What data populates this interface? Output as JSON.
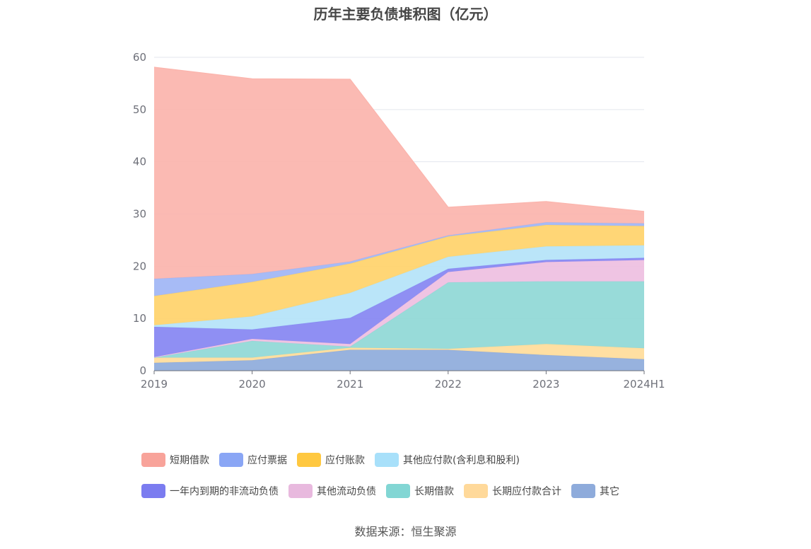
{
  "chart_data": {
    "type": "area",
    "stacked": true,
    "title": "历年主要负债堆积图（亿元）",
    "categories": [
      "2019",
      "2020",
      "2021",
      "2022",
      "2023",
      "2024H1"
    ],
    "ylim": [
      0,
      60
    ],
    "yticks": [
      0,
      10,
      20,
      30,
      40,
      50,
      60
    ],
    "grid": true,
    "legend_position": "bottom",
    "series": [
      {
        "name": "其它",
        "color": "#8eabdb",
        "values": [
          1.5,
          2.0,
          4.0,
          4.0,
          3.0,
          2.2
        ]
      },
      {
        "name": "长期应付款合计",
        "color": "#ffdc9a",
        "values": [
          1.0,
          0.5,
          0.4,
          0.2,
          2.1,
          2.1
        ]
      },
      {
        "name": "长期借款",
        "color": "#8fd8d6",
        "values": [
          0.0,
          3.2,
          0.2,
          12.7,
          12.0,
          12.8
        ]
      },
      {
        "name": "其他流动负债",
        "color": "#eebfe1",
        "values": [
          0.1,
          0.4,
          0.5,
          2.0,
          3.7,
          4.1
        ]
      },
      {
        "name": "一年内到期的非流动负债",
        "color": "#8586f2",
        "values": [
          5.8,
          1.8,
          5.0,
          0.6,
          0.4,
          0.4
        ]
      },
      {
        "name": "其他应付款(含利息和股利)",
        "color": "#b4e3f9",
        "values": [
          0.3,
          2.5,
          4.8,
          2.3,
          2.6,
          2.4
        ]
      },
      {
        "name": "应付账款",
        "color": "#ffd26a",
        "values": [
          5.6,
          6.6,
          5.6,
          3.9,
          4.1,
          3.7
        ]
      },
      {
        "name": "应付票据",
        "color": "#9fb5f5",
        "values": [
          3.3,
          1.5,
          0.4,
          0.2,
          0.5,
          0.5
        ]
      },
      {
        "name": "短期借款",
        "color": "#fbb4ac",
        "values": [
          40.5,
          37.4,
          34.9,
          5.4,
          4.0,
          2.3
        ]
      }
    ],
    "legend_order": [
      "短期借款",
      "应付票据",
      "应付账款",
      "其他应付款(含利息和股利)",
      "一年内到期的非流动负债",
      "其他流动负债",
      "长期借款",
      "长期应付款合计",
      "其它"
    ],
    "legend_colors": [
      "#f8a39a",
      "#8aa6f5",
      "#ffc840",
      "#a8e0fa",
      "#7b7cf0",
      "#e8b9de",
      "#82d6d4",
      "#ffd99a",
      "#8eabdb"
    ]
  },
  "source": "数据来源：恒生聚源"
}
